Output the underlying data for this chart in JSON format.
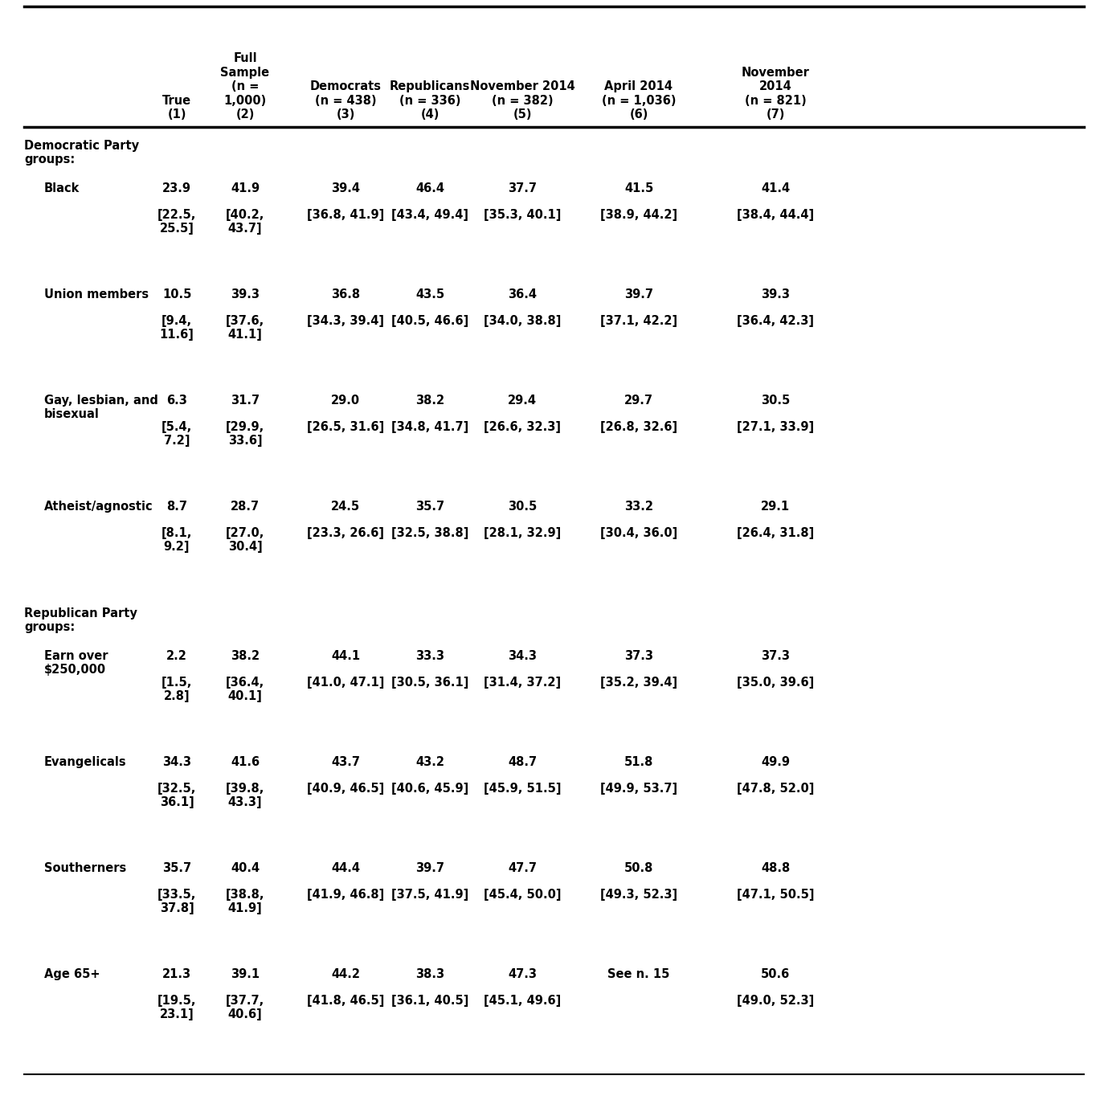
{
  "col_headers_line1": [
    "",
    "Full",
    "Democrats",
    "Republicans",
    "November 2014",
    "April 2014",
    "November"
  ],
  "col_headers_line2": [
    "",
    "Sample",
    "(n = 438)",
    "(n = 336)",
    "(n = 382)",
    "(n = 1,036)",
    "2014"
  ],
  "col_headers_line3": [
    "True",
    "(n =",
    "(3)",
    "(4)",
    "(5)",
    "(6)",
    "(n = 821)"
  ],
  "col_headers_line4": [
    "(1)",
    "1,000)",
    "",
    "",
    "",
    "",
    "(7)"
  ],
  "col_headers_line5": [
    "",
    "(2)",
    "",
    "",
    "",
    "",
    ""
  ],
  "rows": [
    {
      "type": "section",
      "label": "Democratic Party\ngroups:",
      "indent": false
    },
    {
      "type": "data",
      "label": "Black",
      "indent": true,
      "values": [
        "23.9",
        "41.9",
        "39.4",
        "46.4",
        "37.7",
        "41.5",
        "41.4"
      ],
      "ci_line1": [
        "[22.5,",
        "[40.2,",
        "[36.8, 41.9]",
        "[43.4, 49.4]",
        "[35.3, 40.1]",
        "[38.9, 44.2]",
        "[38.4, 44.4]"
      ],
      "ci_line2": [
        "25.5]",
        "43.7]",
        "",
        "",
        "",
        "",
        ""
      ]
    },
    {
      "type": "data",
      "label": "Union members",
      "indent": true,
      "values": [
        "10.5",
        "39.3",
        "36.8",
        "43.5",
        "36.4",
        "39.7",
        "39.3"
      ],
      "ci_line1": [
        "[9.4,",
        "[37.6,",
        "[34.3, 39.4]",
        "[40.5, 46.6]",
        "[34.0, 38.8]",
        "[37.1, 42.2]",
        "[36.4, 42.3]"
      ],
      "ci_line2": [
        "11.6]",
        "41.1]",
        "",
        "",
        "",
        "",
        ""
      ]
    },
    {
      "type": "data",
      "label": "Gay, lesbian, and\nbisexual",
      "indent": true,
      "values": [
        "6.3",
        "31.7",
        "29.0",
        "38.2",
        "29.4",
        "29.7",
        "30.5"
      ],
      "ci_line1": [
        "[5.4,",
        "[29.9,",
        "[26.5, 31.6]",
        "[34.8, 41.7]",
        "[26.6, 32.3]",
        "[26.8, 32.6]",
        "[27.1, 33.9]"
      ],
      "ci_line2": [
        "7.2]",
        "33.6]",
        "",
        "",
        "",
        "",
        ""
      ]
    },
    {
      "type": "data",
      "label": "Atheist/agnostic",
      "indent": true,
      "values": [
        "8.7",
        "28.7",
        "24.5",
        "35.7",
        "30.5",
        "33.2",
        "29.1"
      ],
      "ci_line1": [
        "[8.1,",
        "[27.0,",
        "[23.3, 26.6]",
        "[32.5, 38.8]",
        "[28.1, 32.9]",
        "[30.4, 36.0]",
        "[26.4, 31.8]"
      ],
      "ci_line2": [
        "9.2]",
        "30.4]",
        "",
        "",
        "",
        "",
        ""
      ]
    },
    {
      "type": "section",
      "label": "Republican Party\ngroups:",
      "indent": false
    },
    {
      "type": "data",
      "label": "Earn over\n$250,000",
      "indent": true,
      "values": [
        "2.2",
        "38.2",
        "44.1",
        "33.3",
        "34.3",
        "37.3",
        "37.3"
      ],
      "ci_line1": [
        "[1.5,",
        "[36.4,",
        "[41.0, 47.1]",
        "[30.5, 36.1]",
        "[31.4, 37.2]",
        "[35.2, 39.4]",
        "[35.0, 39.6]"
      ],
      "ci_line2": [
        "2.8]",
        "40.1]",
        "",
        "",
        "",
        "",
        ""
      ]
    },
    {
      "type": "data",
      "label": "Evangelicals",
      "indent": true,
      "values": [
        "34.3",
        "41.6",
        "43.7",
        "43.2",
        "48.7",
        "51.8",
        "49.9"
      ],
      "ci_line1": [
        "[32.5,",
        "[39.8,",
        "[40.9, 46.5]",
        "[40.6, 45.9]",
        "[45.9, 51.5]",
        "[49.9, 53.7]",
        "[47.8, 52.0]"
      ],
      "ci_line2": [
        "36.1]",
        "43.3]",
        "",
        "",
        "",
        "",
        ""
      ]
    },
    {
      "type": "data",
      "label": "Southerners",
      "indent": true,
      "values": [
        "35.7",
        "40.4",
        "44.4",
        "39.7",
        "47.7",
        "50.8",
        "48.8"
      ],
      "ci_line1": [
        "[33.5,",
        "[38.8,",
        "[41.9, 46.8]",
        "[37.5, 41.9]",
        "[45.4, 50.0]",
        "[49.3, 52.3]",
        "[47.1, 50.5]"
      ],
      "ci_line2": [
        "37.8]",
        "41.9]",
        "",
        "",
        "",
        "",
        ""
      ]
    },
    {
      "type": "data",
      "label": "Age 65+",
      "indent": true,
      "values": [
        "21.3",
        "39.1",
        "44.2",
        "38.3",
        "47.3",
        "See n. 15",
        "50.6"
      ],
      "ci_line1": [
        "[19.5,",
        "[37.7,",
        "[41.8, 46.5]",
        "[36.1, 40.5]",
        "[45.1, 49.6]",
        "",
        "[49.0, 52.3]"
      ],
      "ci_line2": [
        "23.1]",
        "40.6]",
        "",
        "",
        "",
        "",
        ""
      ]
    }
  ],
  "background_color": "#ffffff",
  "text_color": "#000000",
  "line_color": "#000000",
  "fs": 10.5
}
